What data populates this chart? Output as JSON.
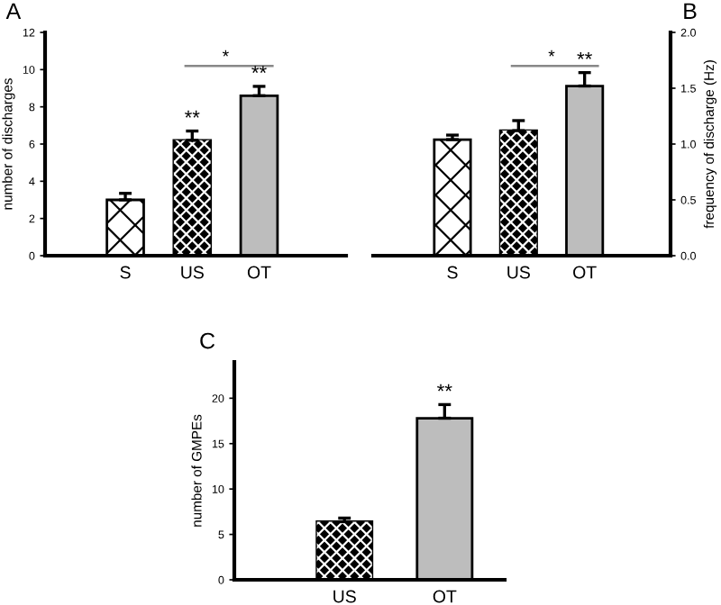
{
  "chart_data": [
    {
      "type": "bar",
      "categories": [
        "S",
        "US",
        "OT"
      ],
      "ylabel": "number of discharges",
      "ylim": [
        0,
        12
      ],
      "yticks": [
        0,
        2,
        4,
        6,
        8,
        10,
        12
      ],
      "grid": false,
      "legend": false,
      "series": [
        {
          "values": [
            3.0,
            6.2,
            8.6
          ],
          "errors": [
            0.35,
            0.5,
            0.5
          ],
          "colors": [
            "#ffffff",
            "#000000",
            "#bdbdbd"
          ]
        }
      ],
      "annotations": [
        "A",
        "*",
        {
          "text": "**",
          "x": "US",
          "y": 6.7
        },
        {
          "text": "**",
          "x": "OT",
          "y": 9.1
        }
      ]
    },
    {
      "type": "bar",
      "categories": [
        "S",
        "US",
        "OT"
      ],
      "y2label": "frequency of discharge (Hz)",
      "y2lim": [
        0,
        2
      ],
      "y2ticks": [
        {
          "value": 0,
          "label": "0.0"
        },
        {
          "value": 0.5,
          "label": "0.5"
        },
        {
          "value": 1,
          "label": "1.0"
        },
        {
          "value": 1.5,
          "label": "1.5"
        },
        {
          "value": 2,
          "label": "2.0"
        }
      ],
      "grid": false,
      "legend": false,
      "series": [
        {
          "values": [
            1.04,
            1.12,
            1.52
          ],
          "errors": [
            0.04,
            0.09,
            0.12
          ],
          "colors": [
            "#ffffff",
            "#000000",
            "#bdbdbd"
          ],
          "axis": "y2"
        }
      ],
      "annotations": [
        "B",
        "*",
        "**"
      ]
    },
    {
      "type": "bar",
      "categories": [
        "US",
        "OT"
      ],
      "ylabel": "number of GMPEs",
      "ylim": [
        0,
        24
      ],
      "yticks": [
        0,
        5,
        10,
        15,
        20
      ],
      "grid": false,
      "legend": false,
      "series": [
        {
          "values": [
            6.4,
            17.8
          ],
          "errors": [
            0.4,
            1.5
          ],
          "colors": [
            "#000000",
            "#bdbdbd"
          ]
        }
      ],
      "annotations": [
        "C",
        {
          "text": "**",
          "x": "OT",
          "y": 19.3
        }
      ]
    }
  ]
}
